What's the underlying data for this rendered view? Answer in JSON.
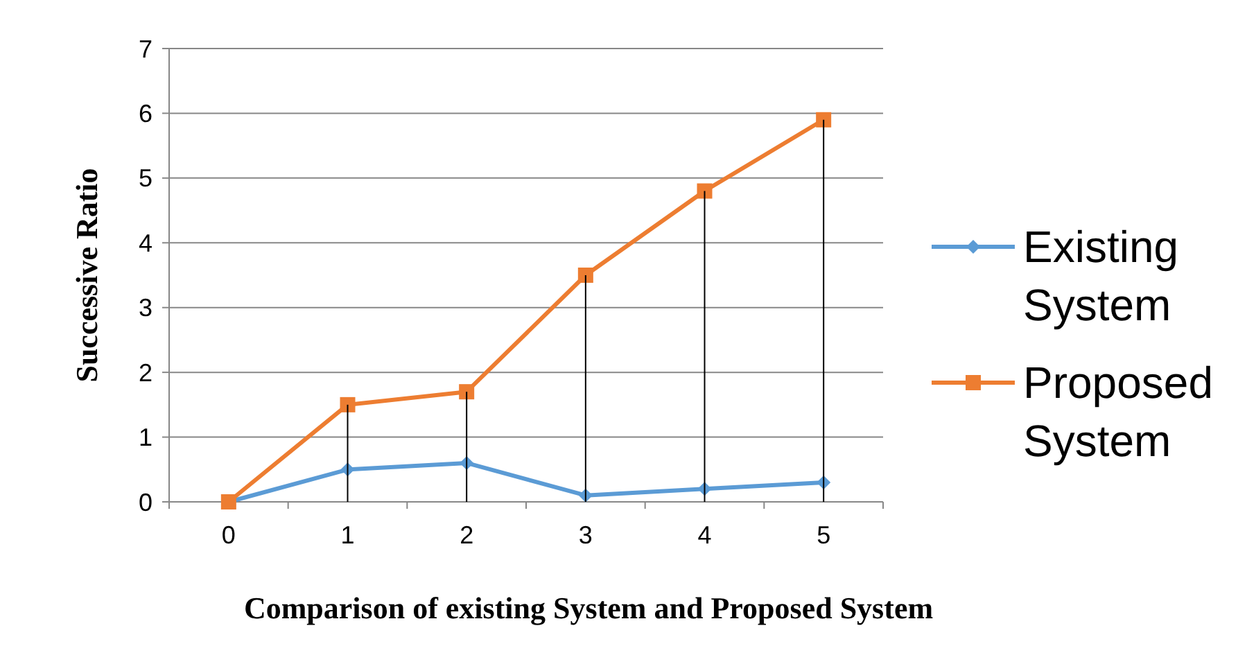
{
  "chart_data": {
    "type": "line",
    "xlabel": "Comparison of existing System and Proposed System",
    "ylabel": "Successive Ratio",
    "categories": [
      "0",
      "1",
      "2",
      "3",
      "4",
      "5"
    ],
    "series": [
      {
        "type": "bar",
        "color": "#000000",
        "values": [
          0,
          1.5,
          1.7,
          3.5,
          4.8,
          5.9
        ]
      },
      {
        "name": "Existing System",
        "color": "#5b9bd5",
        "marker": "diamond",
        "values": [
          0,
          0.5,
          0.6,
          0.1,
          0.2,
          0.3
        ]
      },
      {
        "name": "Proposed System",
        "color": "#ed7d31",
        "marker": "square",
        "values": [
          0,
          1.5,
          1.7,
          3.5,
          4.8,
          5.9
        ]
      }
    ],
    "ylim": [
      0,
      7
    ],
    "yticks": [
      0,
      1,
      2,
      3,
      4,
      5,
      6,
      7
    ],
    "grid": "y",
    "legend": "right"
  }
}
